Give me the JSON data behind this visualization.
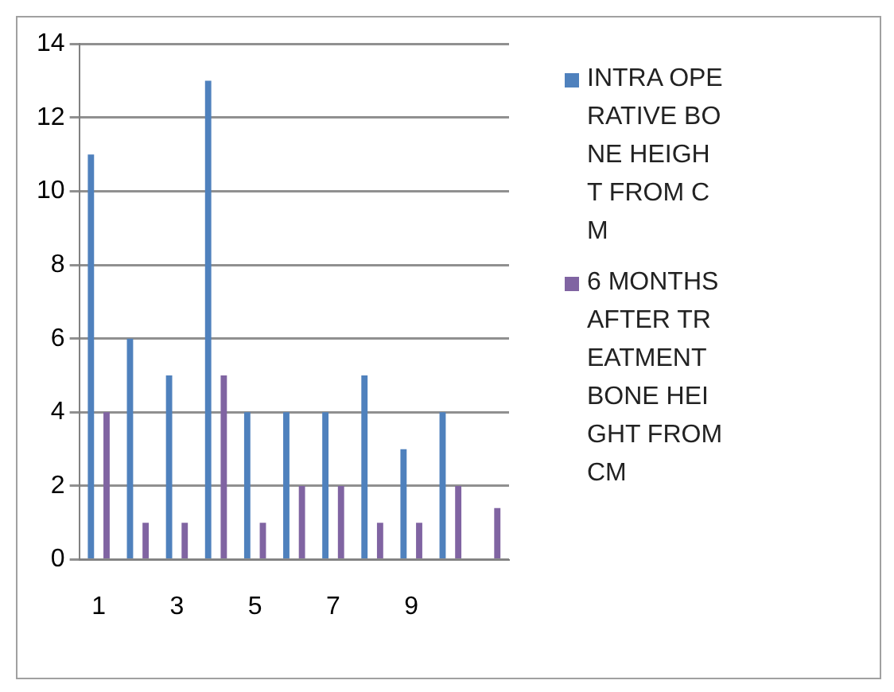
{
  "chart_data": {
    "type": "bar",
    "categories": [
      "1",
      null,
      "3",
      null,
      "5",
      null,
      "7",
      null,
      "9",
      null,
      null
    ],
    "series": [
      {
        "name": "INTRA OPERATIVE BONE HEIGHT FROM CM",
        "color": "#4f81bd",
        "values": [
          11,
          6,
          5,
          13,
          4,
          4,
          4,
          5,
          3,
          4,
          null
        ]
      },
      {
        "name": "6 MONTHS AFTER TREATMENT BONE HEIGHT FROM CM",
        "color": "#8064a2",
        "values": [
          4,
          1,
          1,
          5,
          1,
          2,
          2,
          1,
          1,
          2,
          1.4
        ]
      }
    ],
    "ylim": [
      0,
      14
    ],
    "yticks": [
      0,
      2,
      4,
      6,
      8,
      10,
      12,
      14
    ],
    "grid": "y",
    "legend": "right"
  }
}
